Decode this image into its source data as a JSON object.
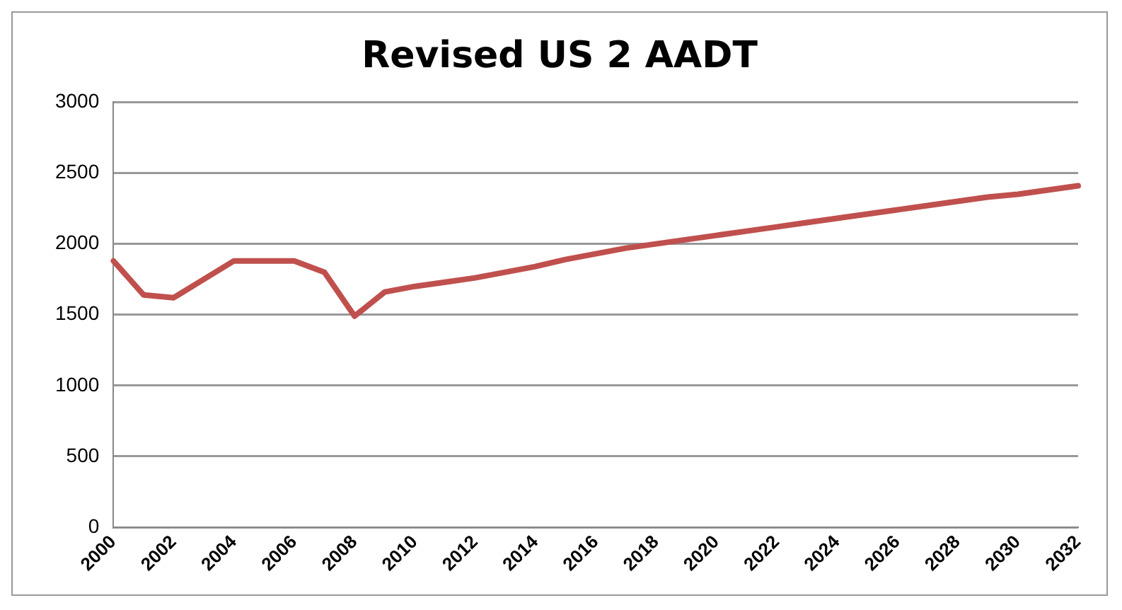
{
  "chart_data": {
    "type": "line",
    "title": "Revised US 2 AADT",
    "categories": [
      "2000",
      null,
      "2002",
      null,
      "2004",
      null,
      "2006",
      null,
      "2008",
      null,
      "2010",
      null,
      "2012",
      null,
      "2014",
      null,
      "2016",
      null,
      "2018",
      null,
      "2020",
      null,
      "2022",
      null,
      "2024",
      null,
      "2026",
      null,
      "2028",
      null,
      "2030",
      null,
      "2032"
    ],
    "series": [
      {
        "color": "#c0504d",
        "values": [
          1880,
          1640,
          1620,
          1750,
          1880,
          1880,
          1880,
          1800,
          1490,
          1660,
          1700,
          1730,
          1760,
          1800,
          1840,
          1890,
          1930,
          1970,
          2000,
          2030,
          2060,
          2090,
          2120,
          2150,
          2180,
          2210,
          2240,
          2270,
          2300,
          2330,
          2350,
          2380,
          2410
        ]
      }
    ],
    "ylim": [
      0,
      3000
    ],
    "yticks": [
      0,
      500,
      1000,
      1500,
      2000,
      2500,
      3000
    ],
    "grid": "y",
    "legend": false,
    "marker": "none",
    "line_style": "solid"
  }
}
